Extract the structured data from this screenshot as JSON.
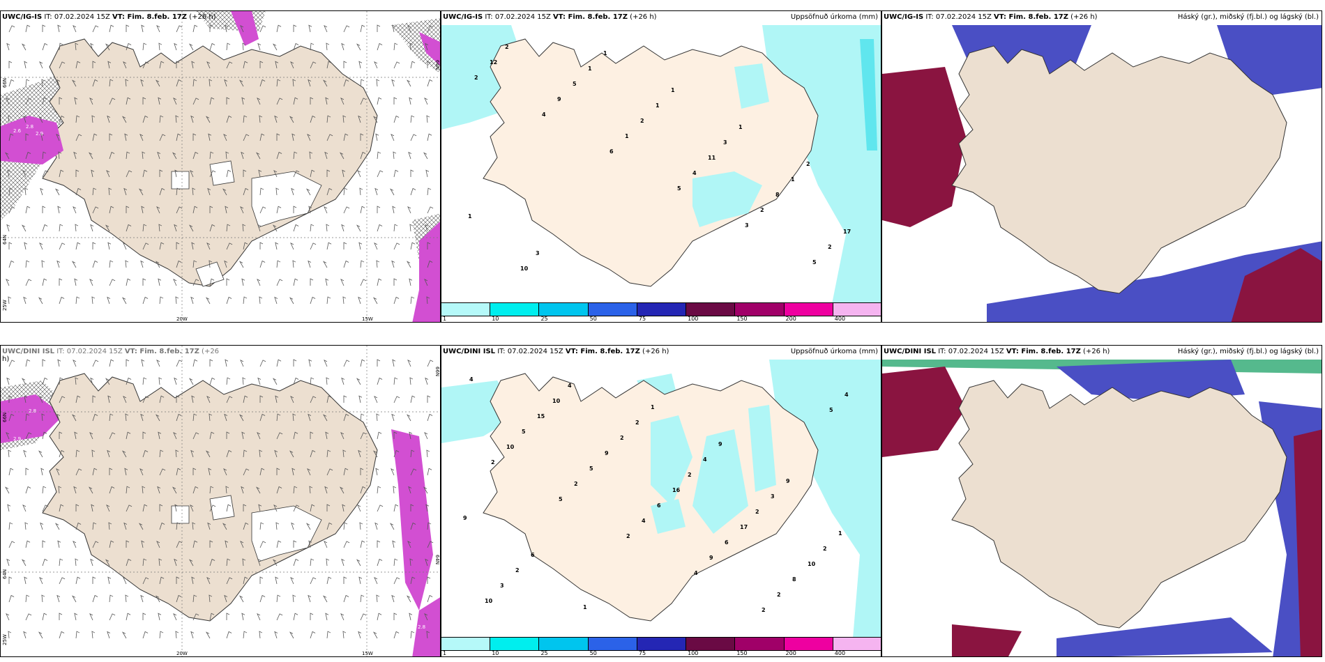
{
  "panels": [
    {
      "title_bold": "UWC/IG-IS",
      "title_rest": " IT: 07.02.2024 15Z ",
      "vt_bold": "VT: Fim. 8.feb. 17Z",
      "vt_rest": " (+26 h)",
      "right_title": ""
    },
    {
      "title_bold": "UWC/IG-IS",
      "title_rest": " IT: 07.02.2024 15Z ",
      "vt_bold": "VT: Fim. 8.feb. 17Z",
      "vt_rest": " (+26 h)",
      "right_title": "Uppsöfnuð úrkoma (mm)"
    },
    {
      "title_bold": "UWC/IG-IS",
      "title_rest": " IT: 07.02.2024 15Z ",
      "vt_bold": "VT: Fim. 8.feb. 17Z",
      "vt_rest": " (+26 h)",
      "right_title": "Háský (gr.), miðský (fj.bl.) og lágský (bl.)"
    },
    {
      "title_bold": "UWC/DINI ISL",
      "title_rest": " IT: 07.02.2024 15Z ",
      "vt_bold": "VT: Fim. 8.feb. 17Z",
      "vt_rest": " (+26",
      "line2": "h)",
      "right_title": ""
    },
    {
      "title_bold": "UWC/DINI ISL",
      "title_rest": " IT: 07.02.2024 15Z ",
      "vt_bold": "VT: Fim. 8.feb. 17Z",
      "vt_rest": " (+26 h)",
      "right_title": "Uppsöfnuð úrkoma (mm)"
    },
    {
      "title_bold": "UWC/DINI ISL",
      "title_rest": " IT: 07.02.2024 15Z ",
      "vt_bold": "VT: Fim. 8.feb. 17Z",
      "vt_rest": " (+26 h)",
      "right_title": "Háský (gr.), miðský (fj.bl.) og lágský (bl.)"
    }
  ],
  "precip_scale": {
    "colors": [
      "#b5f9f9",
      "#00eeee",
      "#00c5ee",
      "#2b62e8",
      "#2426b4",
      "#6a0a44",
      "#a00068",
      "#ee00a0",
      "#f5b4f0"
    ],
    "ticks": [
      "1",
      "10",
      "25",
      "50",
      "75",
      "100",
      "150",
      "200",
      "400"
    ]
  },
  "colors": {
    "land": "#ecdfd0",
    "land_pale": "#fdf0e2",
    "precip_light": "#b0f6f6",
    "precip_mid": "#60e6ee",
    "wind_magenta": "#d24fd2",
    "cloud_high": "#4a4fc4",
    "cloud_low": "#8a1440",
    "cloud_mid": "#2a9adb"
  },
  "coords_wind_top": {
    "lat1": "66N",
    "lat2": "64N",
    "lat3": "25W",
    "lon1": "20W",
    "lon2": "15W",
    "lat_r": "66N"
  },
  "coords_wind_bottom": {
    "lat1": "66N",
    "lat2": "64N",
    "lat3": "25W",
    "lon1": "20W",
    "lon2": "15W",
    "lat_r": "66N",
    "lat_r2": "64N"
  },
  "precip_labels_top": [
    "2",
    "4",
    "6",
    "5",
    "3",
    "5",
    "12",
    "9",
    "1",
    "4",
    "2",
    "2",
    "2",
    "5",
    "2",
    "11",
    "8",
    "17",
    "10",
    "1",
    "1",
    "3",
    "1",
    "1",
    "3",
    "1",
    "1",
    "1",
    "2"
  ],
  "precip_labels_bottom": [
    "2",
    "5",
    "2",
    "4",
    "2",
    "5",
    "10",
    "2",
    "4",
    "9",
    "2",
    "4",
    "5",
    "5",
    "6",
    "6",
    "8",
    "4",
    "15",
    "9",
    "16",
    "17",
    "10",
    "10",
    "10",
    "2",
    "2",
    "2",
    "2",
    "3",
    "4",
    "2",
    "4",
    "3",
    "1",
    "2",
    "1",
    "1",
    "9",
    "9",
    "9",
    "6"
  ],
  "wind_magenta_labels": [
    "2.8",
    "2.9",
    "2.6",
    "2.8",
    "2.9",
    "2.8"
  ]
}
